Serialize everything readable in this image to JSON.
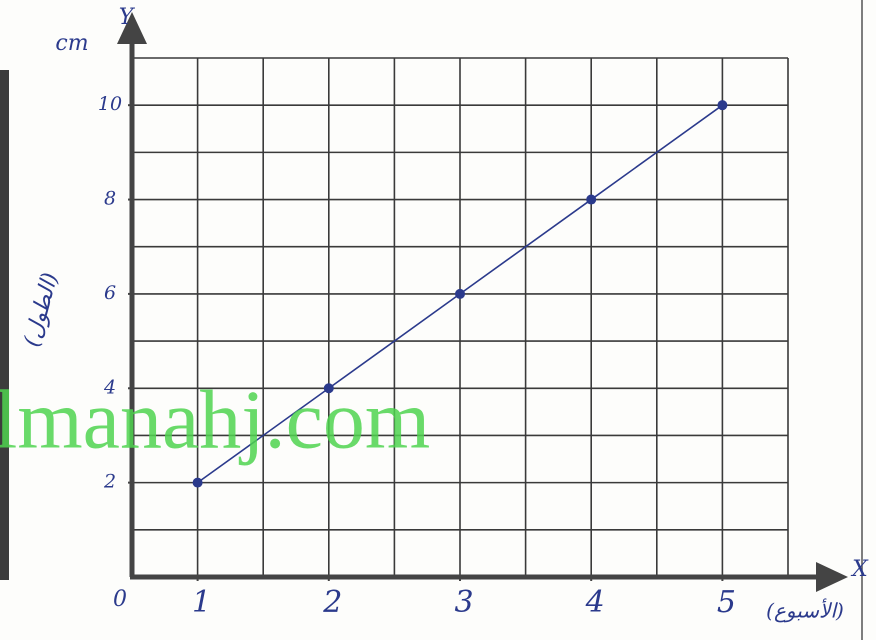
{
  "chart_data": {
    "type": "line",
    "y_unit": "cm",
    "y_axis_name": "Y",
    "x_axis_name": "X",
    "origin_label": "0",
    "x_axis_label": "(الأسبوع)",
    "y_axis_label": "(الطول)",
    "x": [
      1,
      2,
      3,
      4,
      5
    ],
    "series": [
      {
        "color": "#2b3a8c",
        "values": [
          2,
          4,
          6,
          8,
          10
        ]
      }
    ],
    "xlim": [
      0.5,
      5.5
    ],
    "ylim": [
      0,
      11
    ],
    "xticks": [
      1,
      2,
      3,
      4,
      5
    ],
    "yticks": [
      2,
      4,
      6,
      8,
      10
    ],
    "grid": true
  },
  "watermark": "lmanahj.com"
}
